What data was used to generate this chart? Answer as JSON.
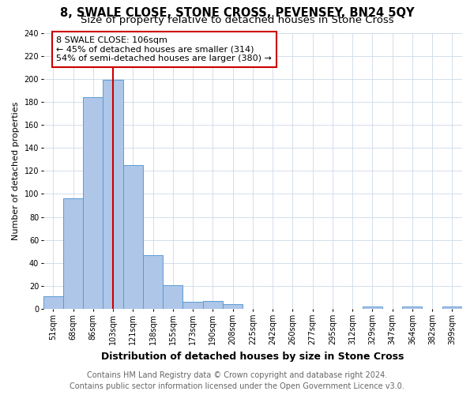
{
  "title": "8, SWALE CLOSE, STONE CROSS, PEVENSEY, BN24 5QY",
  "subtitle": "Size of property relative to detached houses in Stone Cross",
  "xlabel": "Distribution of detached houses by size in Stone Cross",
  "ylabel": "Number of detached properties",
  "categories": [
    "51sqm",
    "68sqm",
    "86sqm",
    "103sqm",
    "121sqm",
    "138sqm",
    "155sqm",
    "173sqm",
    "190sqm",
    "208sqm",
    "225sqm",
    "242sqm",
    "260sqm",
    "277sqm",
    "295sqm",
    "312sqm",
    "329sqm",
    "347sqm",
    "364sqm",
    "382sqm",
    "399sqm"
  ],
  "values": [
    11,
    96,
    184,
    199,
    125,
    47,
    21,
    6,
    7,
    4,
    0,
    0,
    0,
    0,
    0,
    0,
    2,
    0,
    2,
    0,
    2
  ],
  "bar_color": "#aec6e8",
  "bar_edge_color": "#5b9bd5",
  "vline_x_index": 3,
  "vline_color": "#cc0000",
  "annotation_line1": "8 SWALE CLOSE: 106sqm",
  "annotation_line2": "← 45% of detached houses are smaller (314)",
  "annotation_line3": "54% of semi-detached houses are larger (380) →",
  "annotation_box_color": "#ffffff",
  "annotation_box_edge_color": "#cc0000",
  "ylim": [
    0,
    240
  ],
  "yticks": [
    0,
    20,
    40,
    60,
    80,
    100,
    120,
    140,
    160,
    180,
    200,
    220,
    240
  ],
  "footer_line1": "Contains HM Land Registry data © Crown copyright and database right 2024.",
  "footer_line2": "Contains public sector information licensed under the Open Government Licence v3.0.",
  "bg_color": "#ffffff",
  "grid_color": "#ccd9e8",
  "title_fontsize": 10.5,
  "subtitle_fontsize": 9.5,
  "xlabel_fontsize": 9,
  "ylabel_fontsize": 8,
  "tick_fontsize": 7,
  "footer_fontsize": 7,
  "annotation_fontsize": 8
}
